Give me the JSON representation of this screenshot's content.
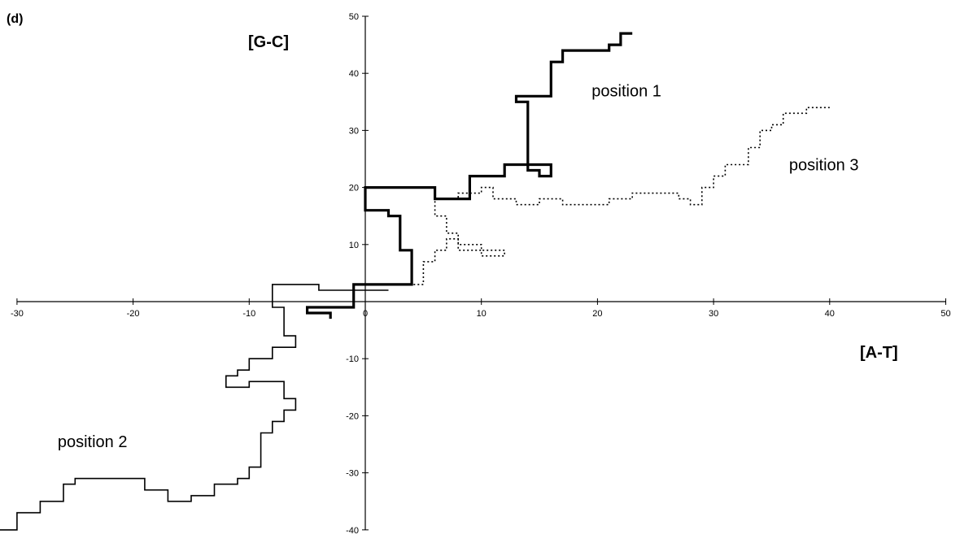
{
  "chart_data": {
    "type": "line",
    "panel_label": "(d)",
    "xlabel": "[A-T]",
    "ylabel": "[G-C]",
    "xlim": [
      -30,
      50
    ],
    "ylim": [
      -40,
      50
    ],
    "x_ticks": [
      -30,
      -20,
      -10,
      0,
      10,
      20,
      30,
      40,
      50
    ],
    "y_ticks": [
      -40,
      -30,
      -20,
      -10,
      0,
      10,
      20,
      30,
      40,
      50
    ],
    "grid": false,
    "annotations": [
      {
        "text": "position 1",
        "x": 19.5,
        "y": 37
      },
      {
        "text": "position 3",
        "x": 36.5,
        "y": 24
      },
      {
        "text": "position 2",
        "x": -26.5,
        "y": -24.5
      }
    ],
    "series": [
      {
        "id": "position-1",
        "style": "thick-solid",
        "color": "#000000",
        "points": [
          [
            -3,
            -3
          ],
          [
            -3,
            -2
          ],
          [
            -5,
            -2
          ],
          [
            -5,
            -1
          ],
          [
            -1,
            -1
          ],
          [
            -1,
            3
          ],
          [
            4,
            3
          ],
          [
            4,
            9
          ],
          [
            3,
            9
          ],
          [
            3,
            15
          ],
          [
            2,
            15
          ],
          [
            2,
            16
          ],
          [
            0,
            16
          ],
          [
            0,
            20
          ],
          [
            6,
            20
          ],
          [
            6,
            18
          ],
          [
            9,
            18
          ],
          [
            9,
            22
          ],
          [
            12,
            22
          ],
          [
            12,
            24
          ],
          [
            16,
            24
          ],
          [
            16,
            22
          ],
          [
            15,
            22
          ],
          [
            15,
            23
          ],
          [
            14,
            23
          ],
          [
            14,
            35
          ],
          [
            13,
            35
          ],
          [
            13,
            36
          ],
          [
            16,
            36
          ],
          [
            16,
            42
          ],
          [
            17,
            42
          ],
          [
            17,
            44
          ],
          [
            21,
            44
          ],
          [
            21,
            45
          ],
          [
            22,
            45
          ],
          [
            22,
            47
          ],
          [
            23,
            47
          ]
        ]
      },
      {
        "id": "position-3",
        "style": "dotted",
        "color": "#000000",
        "points": [
          [
            1,
            3
          ],
          [
            5,
            3
          ],
          [
            5,
            7
          ],
          [
            6,
            7
          ],
          [
            6,
            9
          ],
          [
            7,
            9
          ],
          [
            7,
            11
          ],
          [
            8,
            11
          ],
          [
            8,
            10
          ],
          [
            10,
            10
          ],
          [
            10,
            9
          ],
          [
            12,
            9
          ],
          [
            12,
            8
          ],
          [
            10,
            8
          ],
          [
            10,
            9
          ],
          [
            8,
            9
          ],
          [
            8,
            12
          ],
          [
            7,
            12
          ],
          [
            7,
            15
          ],
          [
            6,
            15
          ],
          [
            6,
            18
          ],
          [
            8,
            18
          ],
          [
            8,
            19
          ],
          [
            10,
            19
          ],
          [
            10,
            20
          ],
          [
            11,
            20
          ],
          [
            11,
            18
          ],
          [
            13,
            18
          ],
          [
            13,
            17
          ],
          [
            15,
            17
          ],
          [
            15,
            18
          ],
          [
            17,
            18
          ],
          [
            17,
            17
          ],
          [
            21,
            17
          ],
          [
            21,
            18
          ],
          [
            23,
            18
          ],
          [
            23,
            19
          ],
          [
            27,
            19
          ],
          [
            27,
            18
          ],
          [
            28,
            18
          ],
          [
            28,
            17
          ],
          [
            29,
            17
          ],
          [
            29,
            20
          ],
          [
            30,
            20
          ],
          [
            30,
            22
          ],
          [
            31,
            22
          ],
          [
            31,
            24
          ],
          [
            33,
            24
          ],
          [
            33,
            27
          ],
          [
            34,
            27
          ],
          [
            34,
            30
          ],
          [
            35,
            30
          ],
          [
            35,
            31
          ],
          [
            36,
            31
          ],
          [
            36,
            33
          ],
          [
            38,
            33
          ],
          [
            38,
            34
          ],
          [
            40,
            34
          ]
        ]
      },
      {
        "id": "position-2",
        "style": "thin-solid",
        "color": "#000000",
        "points": [
          [
            2,
            2
          ],
          [
            -4,
            2
          ],
          [
            -4,
            3
          ],
          [
            -8,
            3
          ],
          [
            -8,
            -1
          ],
          [
            -7,
            -1
          ],
          [
            -7,
            -6
          ],
          [
            -6,
            -6
          ],
          [
            -6,
            -8
          ],
          [
            -8,
            -8
          ],
          [
            -8,
            -10
          ],
          [
            -10,
            -10
          ],
          [
            -10,
            -12
          ],
          [
            -11,
            -12
          ],
          [
            -11,
            -13
          ],
          [
            -12,
            -13
          ],
          [
            -12,
            -15
          ],
          [
            -10,
            -15
          ],
          [
            -10,
            -14
          ],
          [
            -7,
            -14
          ],
          [
            -7,
            -17
          ],
          [
            -6,
            -17
          ],
          [
            -6,
            -19
          ],
          [
            -7,
            -19
          ],
          [
            -7,
            -21
          ],
          [
            -8,
            -21
          ],
          [
            -8,
            -23
          ],
          [
            -9,
            -23
          ],
          [
            -9,
            -29
          ],
          [
            -10,
            -29
          ],
          [
            -10,
            -31
          ],
          [
            -11,
            -31
          ],
          [
            -11,
            -32
          ],
          [
            -13,
            -32
          ],
          [
            -13,
            -34
          ],
          [
            -15,
            -34
          ],
          [
            -15,
            -35
          ],
          [
            -17,
            -35
          ],
          [
            -17,
            -33
          ],
          [
            -19,
            -33
          ],
          [
            -19,
            -31
          ],
          [
            -25,
            -31
          ],
          [
            -25,
            -32
          ],
          [
            -26,
            -32
          ],
          [
            -26,
            -35
          ],
          [
            -28,
            -35
          ],
          [
            -28,
            -37
          ],
          [
            -30,
            -37
          ],
          [
            -30,
            -40
          ],
          [
            -32,
            -40
          ],
          [
            -32,
            -39
          ],
          [
            -33,
            -39
          ],
          [
            -33,
            -37
          ]
        ]
      }
    ]
  }
}
